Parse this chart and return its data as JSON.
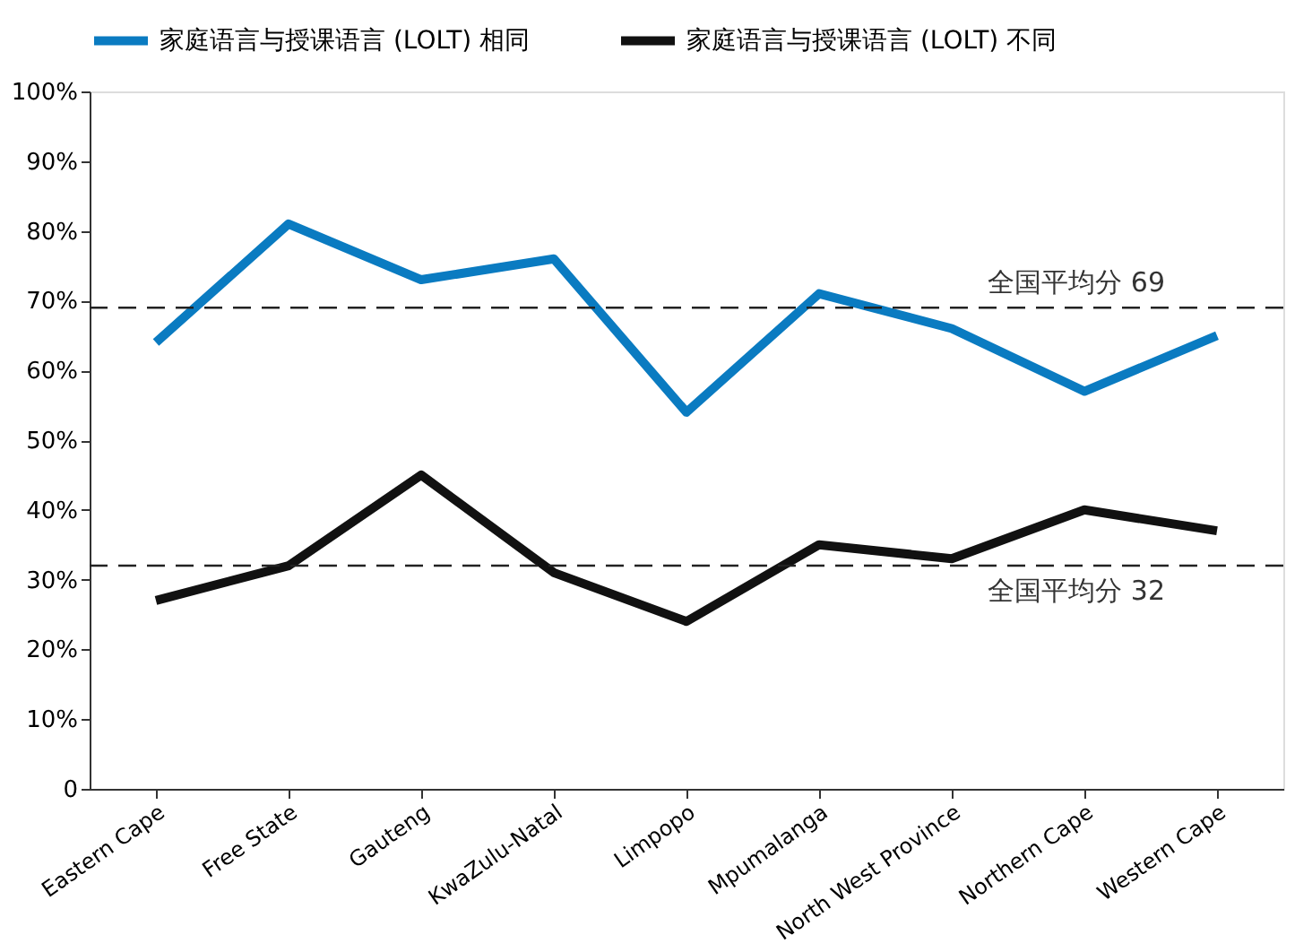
{
  "chart_data": {
    "type": "line",
    "categories": [
      "Eastern Cape",
      "Free State",
      "Gauteng",
      "KwaZulu-Natal",
      "Limpopo",
      "Mpumalanga",
      "North West Province",
      "Northern Cape",
      "Western Cape"
    ],
    "series": [
      {
        "name": "家庭语言与授课语言 (LOLT) 相同",
        "color": "#0a7bc1",
        "values": [
          64,
          81,
          73,
          76,
          54,
          71,
          66,
          57,
          65
        ]
      },
      {
        "name": "家庭语言与授课语言 (LOLT) 不同",
        "color": "#111111",
        "values": [
          27,
          32,
          45,
          31,
          24,
          35,
          33,
          40,
          37
        ]
      }
    ],
    "ylim": [
      0,
      100
    ],
    "yticks": [
      {
        "value": 0,
        "label": "0"
      },
      {
        "value": 10,
        "label": "10%"
      },
      {
        "value": 20,
        "label": "20%"
      },
      {
        "value": 30,
        "label": "30%"
      },
      {
        "value": 40,
        "label": "40%"
      },
      {
        "value": 50,
        "label": "50%"
      },
      {
        "value": 60,
        "label": "60%"
      },
      {
        "value": 70,
        "label": "70%"
      },
      {
        "value": 80,
        "label": "80%"
      },
      {
        "value": 90,
        "label": "90%"
      },
      {
        "value": 100,
        "label": "100%"
      }
    ],
    "ref_lines": [
      {
        "axis": "y",
        "value": 69,
        "label": "全国平均分 69",
        "color": "#222222",
        "line_style": "dashed"
      },
      {
        "axis": "y",
        "value": 32,
        "label": "全国平均分 32",
        "color": "#222222",
        "line_style": "dashed"
      }
    ],
    "grid": false,
    "legend": "top",
    "marker": "none",
    "line_style": "solid"
  }
}
